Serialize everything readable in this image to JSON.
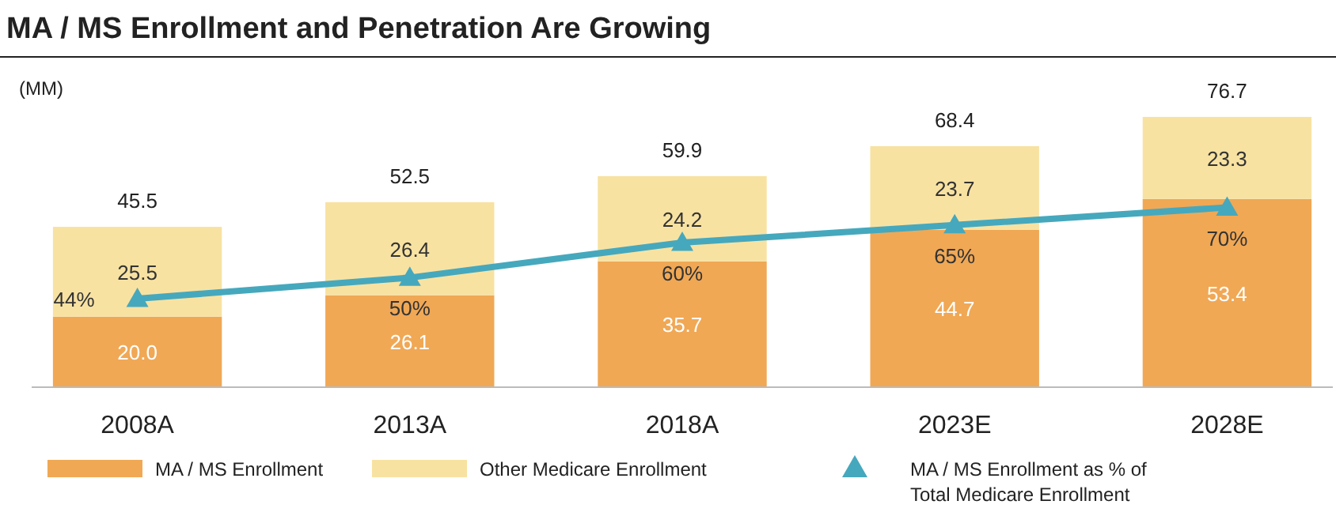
{
  "chart_data": {
    "type": "bar",
    "title": "MA / MS Enrollment and Penetration Are Growing",
    "ylabel": "(MM)",
    "categories": [
      "2008A",
      "2013A",
      "2018A",
      "2023E",
      "2028E"
    ],
    "stacked": true,
    "legend": "bottom",
    "totals": [
      "45.5",
      "52.5",
      "59.9",
      "68.4",
      "76.7"
    ],
    "series": [
      {
        "name": "MA / MS Enrollment",
        "color": "#f0a855",
        "values": [
          20.0,
          26.1,
          35.7,
          44.7,
          53.4
        ],
        "value_labels": [
          "20.0",
          "26.1",
          "35.7",
          "44.7",
          "53.4"
        ]
      },
      {
        "name": "Other Medicare Enrollment",
        "color": "#f8e2a2",
        "values": [
          25.5,
          26.4,
          24.2,
          23.7,
          23.3
        ],
        "value_labels": [
          "25.5",
          "26.4",
          "24.2",
          "23.7",
          "23.3"
        ]
      },
      {
        "name": "MA / MS Enrollment as % of Total Medicare Enrollment",
        "type": "line",
        "axis": "y2",
        "marker": "triangle",
        "color": "#46a8bd",
        "values": [
          44,
          50,
          60,
          65,
          70
        ],
        "value_labels": [
          "44%",
          "50%",
          "60%",
          "65%",
          "70%"
        ]
      }
    ]
  }
}
